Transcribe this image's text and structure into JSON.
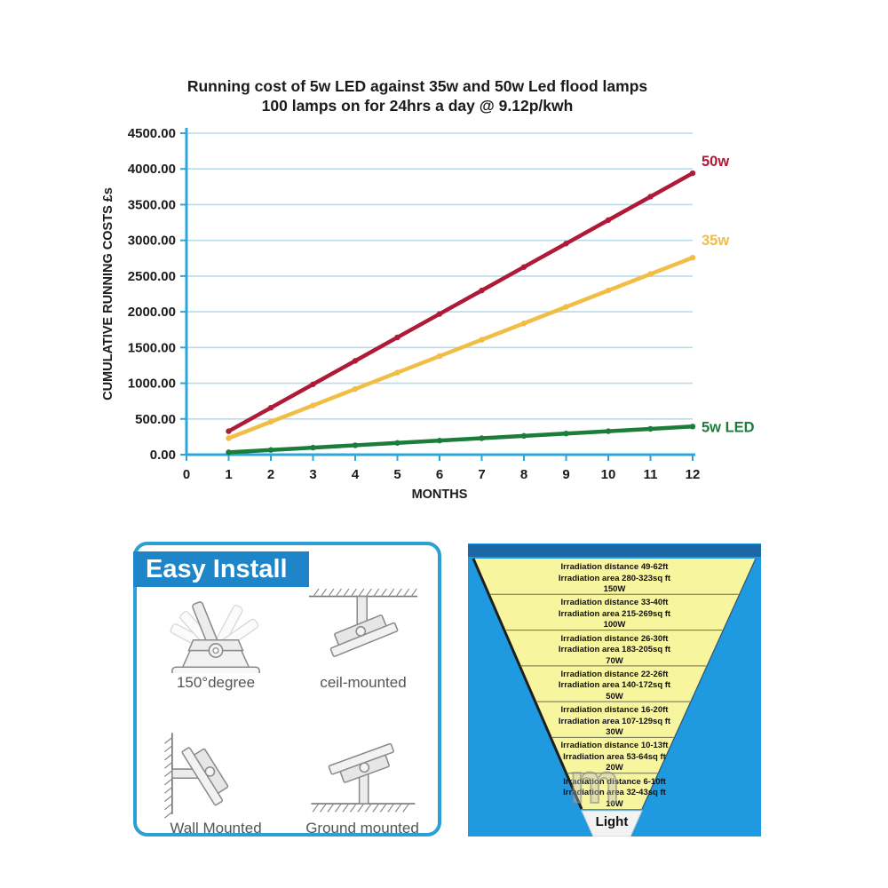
{
  "chart": {
    "title_line1": "Running cost of 5w LED against 35w and 50w Led flood lamps",
    "title_line2": "100 lamps on for 24hrs a day @ 9.12p/kwh"
  },
  "chart_data": {
    "type": "line",
    "title": "Running cost of 5w LED against 35w and 50w Led flood lamps",
    "subtitle": "100 lamps on for 24hrs a day @ 9.12p/kwh",
    "xlabel": "MONTHS",
    "ylabel": "CUMULATIVE RUNNING COSTS £s",
    "x": [
      1,
      2,
      3,
      4,
      5,
      6,
      7,
      8,
      9,
      10,
      11,
      12
    ],
    "xticks": [
      0,
      1,
      2,
      3,
      4,
      5,
      6,
      7,
      8,
      9,
      10,
      11,
      12
    ],
    "yticks": [
      "0.00",
      "500.00",
      "1000.00",
      "1500.00",
      "2000.00",
      "2500.00",
      "3000.00",
      "3500.00",
      "4000.00",
      "4500.00"
    ],
    "xlim": [
      0,
      12
    ],
    "ylim": [
      0,
      4500
    ],
    "ytick_step": 500,
    "grid": true,
    "legend_position": "line-end-labels",
    "series": [
      {
        "name": "50w",
        "color": "#ae1a38",
        "label_dy": -8,
        "values": [
          328.32,
          656.64,
          984.96,
          1313.28,
          1641.6,
          1969.92,
          2298.24,
          2626.56,
          2954.88,
          3283.2,
          3611.52,
          3939.84
        ]
      },
      {
        "name": "35w",
        "color": "#f1bd45",
        "label_dy": -14,
        "values": [
          229.82,
          459.65,
          689.47,
          919.3,
          1149.12,
          1378.94,
          1608.77,
          1838.59,
          2068.42,
          2298.24,
          2528.06,
          2757.89
        ]
      },
      {
        "name": "5w LED",
        "color": "#1c7d3a",
        "label_dy": 6,
        "values": [
          32.83,
          65.66,
          98.5,
          131.33,
          164.16,
          196.99,
          229.82,
          262.66,
          295.49,
          328.32,
          361.15,
          393.98
        ]
      }
    ]
  },
  "colors": {
    "axis": "#2da7db",
    "gridline": "#b9dcea",
    "panel_blue": "#1f9ae0",
    "panel_top_bar": "#1a67a3",
    "funnel_yellow": "#f8f59f",
    "banner_blue": "#1e86c8",
    "panel_border": "#2b9fd6"
  },
  "easy_install": {
    "title": "Easy Install",
    "items": [
      {
        "label": "150°degree"
      },
      {
        "label": "ceil-mounted"
      },
      {
        "label": "Wall Mounted"
      },
      {
        "label": "Ground mounted"
      }
    ]
  },
  "irradiation": {
    "bands": [
      {
        "line1": "Irradiation distance 49-62ft",
        "line2": "Irradiation area 280-323sq ft",
        "line3": "150W"
      },
      {
        "line1": "Irradiation distance 33-40ft",
        "line2": "Irradiation area 215-269sq ft",
        "line3": "100W"
      },
      {
        "line1": "Irradiation distance 26-30ft",
        "line2": "Irradiation area 183-205sq ft",
        "line3": "70W"
      },
      {
        "line1": "Irradiation distance 22-26ft",
        "line2": "Irradiation area 140-172sq ft",
        "line3": "50W"
      },
      {
        "line1": "Irradiation distance 16-20ft",
        "line2": "Irradiation area 107-129sq ft",
        "line3": "30W"
      },
      {
        "line1": "Irradiation distance 10-13ft",
        "line2": "Irradiation area 53-64sq ft",
        "line3": "20W"
      },
      {
        "line1": "Irradiation distance 6-10ft",
        "line2": "Irradiation area 32-43sq ft",
        "line3": "10W"
      }
    ],
    "light_label": "Light",
    "watermark": "m"
  }
}
